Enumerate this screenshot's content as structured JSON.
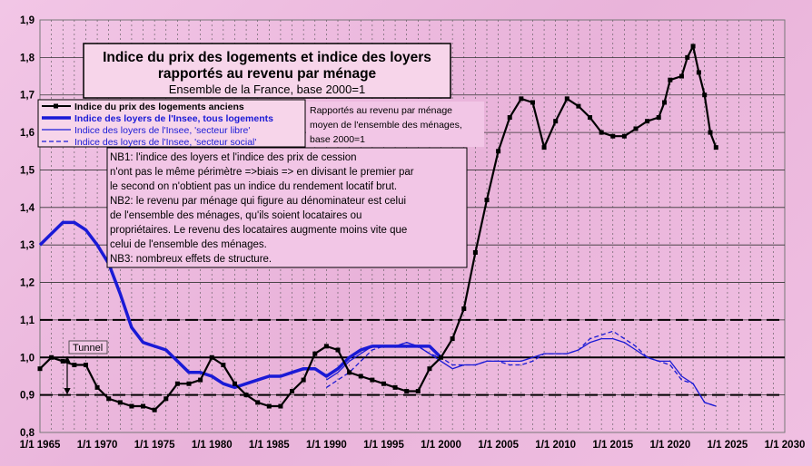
{
  "chart_data": {
    "type": "line",
    "title_line1": "Indice du prix des logements et indice des loyers",
    "title_line2": "rapportés au revenu par ménage",
    "subtitle": "Ensemble de la France, base 2000=1",
    "xlim": [
      1965,
      2030
    ],
    "ylim": [
      0.8,
      1.9
    ],
    "y_ticks": [
      0.8,
      0.9,
      1.0,
      1.1,
      1.2,
      1.3,
      1.4,
      1.5,
      1.6,
      1.7,
      1.8,
      1.9
    ],
    "y_tick_labels": [
      "0,8",
      "0,9",
      "1,0",
      "1,1",
      "1,2",
      "1,3",
      "1,4",
      "1,5",
      "1,6",
      "1,7",
      "1,8",
      "1,9"
    ],
    "x_ticks": [
      1965,
      1970,
      1975,
      1980,
      1985,
      1990,
      1995,
      2000,
      2005,
      2010,
      2015,
      2020,
      2025,
      2030
    ],
    "x_tick_labels": [
      "1/1 1965",
      "1/1 1970",
      "1/1 1975",
      "1/1 1980",
      "1/1 1985",
      "1/1 1990",
      "1/1 1995",
      "1/1 2000",
      "1/1 2005",
      "1/1 2010",
      "1/1 2015",
      "1/1 2020",
      "1/1 2025",
      "1/1 2030"
    ],
    "reference_lines": [
      0.9,
      1.0,
      1.1
    ],
    "series": [
      {
        "name": "Indice du prix des logements anciens",
        "color": "#000000",
        "style": "solid-markers",
        "x": [
          1965,
          1966,
          1967,
          1968,
          1969,
          1970,
          1971,
          1972,
          1973,
          1974,
          1975,
          1976,
          1977,
          1978,
          1979,
          1980,
          1981,
          1982,
          1983,
          1984,
          1985,
          1986,
          1987,
          1988,
          1989,
          1990,
          1991,
          1992,
          1993,
          1994,
          1995,
          1996,
          1997,
          1998,
          1999,
          2000,
          2001,
          2002,
          2003,
          2004,
          2005,
          2006,
          2007,
          2008,
          2009,
          2010,
          2011,
          2012,
          2013,
          2014,
          2015,
          2016,
          2017,
          2018,
          2019,
          2019.5,
          2020,
          2021,
          2021.5,
          2022,
          2022.5,
          2023,
          2023.5,
          2024
        ],
        "values": [
          0.97,
          1.0,
          0.99,
          0.98,
          0.98,
          0.92,
          0.89,
          0.88,
          0.87,
          0.87,
          0.86,
          0.89,
          0.93,
          0.93,
          0.94,
          1.0,
          0.98,
          0.93,
          0.9,
          0.88,
          0.87,
          0.87,
          0.91,
          0.94,
          1.01,
          1.03,
          1.02,
          0.96,
          0.95,
          0.94,
          0.93,
          0.92,
          0.91,
          0.91,
          0.97,
          1.0,
          1.05,
          1.13,
          1.28,
          1.42,
          1.55,
          1.64,
          1.69,
          1.68,
          1.56,
          1.63,
          1.69,
          1.67,
          1.64,
          1.6,
          1.59,
          1.59,
          1.61,
          1.63,
          1.64,
          1.68,
          1.74,
          1.75,
          1.8,
          1.83,
          1.76,
          1.7,
          1.6,
          1.56
        ]
      },
      {
        "name": "Indice des loyers de l'Insee, tous logements",
        "color": "#1a1ad6",
        "style": "thick",
        "x": [
          1965,
          1966,
          1967,
          1968,
          1969,
          1970,
          1971,
          1972,
          1973,
          1974,
          1975,
          1976,
          1977,
          1978,
          1979,
          1980,
          1981,
          1982,
          1983,
          1984,
          1985,
          1986,
          1987,
          1988,
          1989,
          1990,
          1991,
          1992,
          1993,
          1994,
          1995,
          1996,
          1997,
          1998,
          1999,
          2000
        ],
        "values": [
          1.3,
          1.33,
          1.36,
          1.36,
          1.34,
          1.3,
          1.25,
          1.17,
          1.08,
          1.04,
          1.03,
          1.02,
          0.99,
          0.96,
          0.96,
          0.95,
          0.93,
          0.92,
          0.93,
          0.94,
          0.95,
          0.95,
          0.96,
          0.97,
          0.97,
          0.95,
          0.97,
          1.0,
          1.02,
          1.03,
          1.03,
          1.03,
          1.03,
          1.03,
          1.03,
          1.0
        ]
      },
      {
        "name": "Indice des loyers de l'Insee, 'secteur libre'",
        "color": "#1a1ad6",
        "style": "thin",
        "x": [
          1990,
          1991,
          1992,
          1993,
          1994,
          1995,
          1996,
          1997,
          1998,
          1999,
          2000,
          2001,
          2002,
          2003,
          2004,
          2005,
          2006,
          2007,
          2008,
          2009,
          2010,
          2011,
          2012,
          2013,
          2014,
          2015,
          2016,
          2017,
          2018,
          2019,
          2020,
          2021,
          2022,
          2023,
          2024
        ],
        "values": [
          0.94,
          0.96,
          0.99,
          1.01,
          1.03,
          1.03,
          1.03,
          1.04,
          1.03,
          1.01,
          0.99,
          0.97,
          0.98,
          0.98,
          0.99,
          0.99,
          0.99,
          0.99,
          1.0,
          1.01,
          1.01,
          1.01,
          1.02,
          1.04,
          1.05,
          1.05,
          1.04,
          1.02,
          1.0,
          0.99,
          0.99,
          0.95,
          0.93,
          0.88,
          0.87
        ]
      },
      {
        "name": "Indice des loyers de l'Insee, 'secteur social'",
        "color": "#1a1ad6",
        "style": "dashed",
        "x": [
          1990,
          1991,
          1992,
          1993,
          1994,
          1995,
          1996,
          1997,
          1998,
          1999,
          2000,
          2001,
          2002,
          2003,
          2004,
          2005,
          2006,
          2007,
          2008,
          2009,
          2010,
          2011,
          2012,
          2013,
          2014,
          2015,
          2016,
          2017,
          2018,
          2019,
          2020,
          2021,
          2022,
          2023,
          2024
        ],
        "values": [
          0.92,
          0.94,
          0.96,
          0.99,
          1.02,
          1.03,
          1.03,
          1.04,
          1.03,
          1.01,
          1.0,
          0.98,
          0.98,
          0.98,
          0.99,
          0.99,
          0.98,
          0.98,
          0.99,
          1.01,
          1.01,
          1.01,
          1.02,
          1.05,
          1.06,
          1.07,
          1.05,
          1.03,
          1.0,
          0.99,
          0.98,
          0.94,
          0.93,
          0.88,
          0.87
        ]
      }
    ],
    "annotation_box": {
      "lines": [
        "Rapportés  au  revenu  par ménage",
        "moyen de l'ensemble des ménages,",
        "base 2000=1"
      ]
    },
    "note_box": {
      "lines": [
        "NB1: l'indice des loyers et l'indice des prix de cession",
        "n'ont pas le même périmètre =>biais => en divisant le premier par",
        "le second on n'obtient pas un indice du rendement locatif brut.",
        "NB2: le revenu par ménage qui figure au dénominateur est celui",
        "de l'ensemble des ménages, qu'ils soient locataires ou",
        "propriétaires.  Le revenu des locataires augmente moins vite que",
        "celui de l'ensemble des ménages.",
        "NB3: nombreux effets de structure."
      ]
    },
    "tunnel_label": "Tunnel"
  }
}
